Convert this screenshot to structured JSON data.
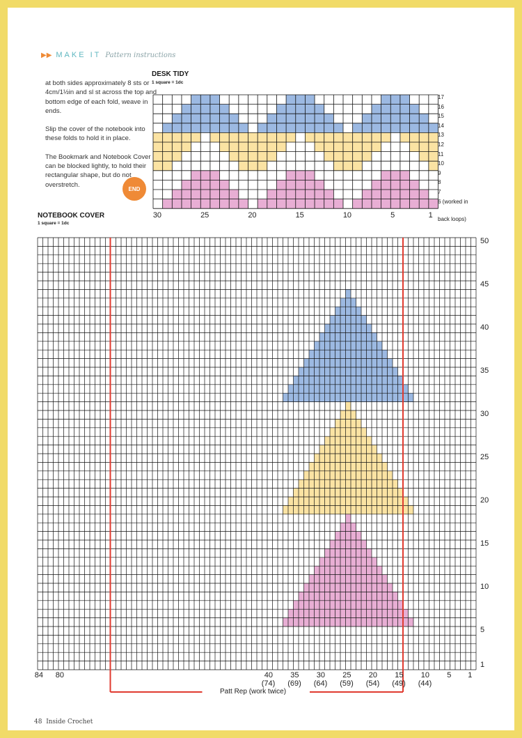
{
  "header": {
    "section": "MAKE IT",
    "subtitle": "Pattern instructions"
  },
  "body_text": [
    "at both sides approximately 8 sts or 4cm/1½in and sl st across the top and bottom edge of each fold, weave in ends.",
    "Slip the cover of the notebook into these folds to hold it in place.",
    "The Bookmark and Notebook Cover can be blocked lightly, to hold their rectangular shape, but do not overstretch."
  ],
  "end_badge": "END",
  "desk_tidy": {
    "title": "DESK TIDY",
    "scale": "1 square = 1dc",
    "rows": 12,
    "cols": 30,
    "row_labels": [
      "17",
      "16",
      "15",
      "14",
      "13",
      "12",
      "11",
      "10",
      "9",
      "8",
      "7",
      "6 (worked in",
      "back loops)"
    ],
    "col_labels": [
      "30",
      "25",
      "20",
      "15",
      "10",
      "5",
      "1"
    ],
    "colors": {
      "blue": "#9cb9e2",
      "yellow": "#fbe3a3",
      "pink": "#e8aed4"
    }
  },
  "notebook_cover": {
    "title": "NOTEBOOK COVER",
    "scale": "1 square = 1dc",
    "rows": 50,
    "cols": 84,
    "row_labels": [
      "50",
      "45",
      "40",
      "35",
      "30",
      "25",
      "20",
      "15",
      "10",
      "5",
      "1"
    ],
    "col_labels": [
      {
        "top": "84",
        "bottom": ""
      },
      {
        "top": "80",
        "bottom": ""
      },
      {
        "top": "40",
        "bottom": "(74)"
      },
      {
        "top": "35",
        "bottom": "(69)"
      },
      {
        "top": "30",
        "bottom": "(64)"
      },
      {
        "top": "25",
        "bottom": "(59)"
      },
      {
        "top": "20",
        "bottom": "(54)"
      },
      {
        "top": "15",
        "bottom": "(49)"
      },
      {
        "top": "10",
        "bottom": "(44)"
      },
      {
        "top": "5",
        "bottom": ""
      },
      {
        "top": "1",
        "bottom": ""
      }
    ],
    "repeat_label": "Patt Rep (work twice)",
    "repeat_color": "#e03a2f",
    "colors": {
      "blue": "#9cb9e2",
      "yellow": "#fbe3a3",
      "pink": "#e8aed4"
    }
  },
  "footer": {
    "page": "48",
    "magazine": "Inside Crochet"
  }
}
